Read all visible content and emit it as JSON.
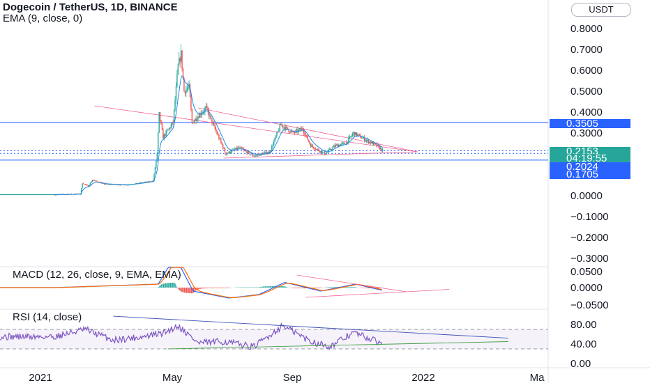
{
  "header": {
    "title": "Dogecoin / TetherUS, 1D, BINANCE",
    "indicator": "EMA (9, close, 0)",
    "currency_button": "USDT"
  },
  "macd_label": "MACD (12, 26, close, 9, EMA, EMA)",
  "rsi_label": "RSI (14, close)",
  "price_tags": {
    "last": "0.2153",
    "countdown": "04:19:55",
    "level_upper": "0.3505",
    "level_a": "0.2024",
    "level_b": "0.1705"
  },
  "colors": {
    "up": "#26a69a",
    "down": "#ef5350",
    "level_line": "#2962ff",
    "trend_line": "#f06292",
    "macd_line": "#2962ff",
    "signal_line": "#ff6d00",
    "rsi_line": "#7e57c2",
    "last_tag": "#26a69a"
  },
  "chart_data": {
    "type": "candlestick",
    "symbol": "DOGE/USDT",
    "interval": "1D",
    "exchange": "BINANCE",
    "price_axis": {
      "ticks": [
        "0.8000",
        "0.7000",
        "0.6000",
        "0.5000",
        "0.4000",
        "0.3000",
        "0.0000",
        "−0.1000",
        "−0.2000",
        "−0.3000"
      ],
      "range": [
        -0.32,
        0.86
      ]
    },
    "macd_axis": {
      "ticks": [
        "0.0500",
        "0.0000",
        "−0.0500"
      ]
    },
    "rsi_axis": {
      "ticks": [
        "80.00",
        "40.00",
        "0.00"
      ],
      "band": [
        30,
        70
      ]
    },
    "time_axis": [
      "2021",
      "May",
      "Sep",
      "2022",
      "Ma"
    ],
    "horizontal_levels": [
      0.3505,
      0.2153,
      0.2024,
      0.1705
    ],
    "price_path": [
      [
        "2021-01-01",
        0.005
      ],
      [
        "2021-01-27",
        0.008
      ],
      [
        "2021-01-29",
        0.06
      ],
      [
        "2021-02-04",
        0.045
      ],
      [
        "2021-02-08",
        0.075
      ],
      [
        "2021-02-20",
        0.055
      ],
      [
        "2021-03-15",
        0.052
      ],
      [
        "2021-04-10",
        0.07
      ],
      [
        "2021-04-14",
        0.2
      ],
      [
        "2021-04-16",
        0.39
      ],
      [
        "2021-04-20",
        0.28
      ],
      [
        "2021-04-30",
        0.35
      ],
      [
        "2021-05-05",
        0.62
      ],
      [
        "2021-05-08",
        0.68
      ],
      [
        "2021-05-11",
        0.5
      ],
      [
        "2021-05-16",
        0.52
      ],
      [
        "2021-05-19",
        0.35
      ],
      [
        "2021-05-25",
        0.38
      ],
      [
        "2021-06-02",
        0.42
      ],
      [
        "2021-06-10",
        0.33
      ],
      [
        "2021-06-22",
        0.2
      ],
      [
        "2021-07-05",
        0.23
      ],
      [
        "2021-07-20",
        0.19
      ],
      [
        "2021-08-05",
        0.21
      ],
      [
        "2021-08-16",
        0.34
      ],
      [
        "2021-08-28",
        0.3
      ],
      [
        "2021-09-07",
        0.32
      ],
      [
        "2021-09-15",
        0.24
      ],
      [
        "2021-09-29",
        0.2
      ],
      [
        "2021-10-10",
        0.24
      ],
      [
        "2021-10-20",
        0.25
      ],
      [
        "2021-10-28",
        0.3
      ],
      [
        "2021-11-08",
        0.27
      ],
      [
        "2021-11-20",
        0.24
      ],
      [
        "2021-11-26",
        0.2153
      ]
    ],
    "trendlines_price": [
      {
        "from": [
          "2021-02-10",
          0.43
        ],
        "to": [
          "2021-12-31",
          0.21
        ]
      },
      {
        "from": [
          "2021-05-25",
          0.42
        ],
        "to": [
          "2021-12-31",
          0.21
        ]
      },
      {
        "from": [
          "2021-06-20",
          0.18
        ],
        "to": [
          "2021-12-31",
          0.21
        ]
      }
    ],
    "macd": {
      "macd_path": [
        [
          "2021-01-01",
          0
        ],
        [
          "2021-04-15",
          0.01
        ],
        [
          "2021-05-02",
          0.09
        ],
        [
          "2021-05-20",
          -0.01
        ],
        [
          "2021-06-25",
          -0.03
        ],
        [
          "2021-07-25",
          -0.02
        ],
        [
          "2021-08-20",
          0.015
        ],
        [
          "2021-09-25",
          -0.01
        ],
        [
          "2021-10-30",
          0.01
        ],
        [
          "2021-11-26",
          -0.008
        ]
      ]
    },
    "rsi": {
      "rsi_path": [
        [
          "2021-01-01",
          55
        ],
        [
          "2021-02-01",
          70
        ],
        [
          "2021-03-01",
          48
        ],
        [
          "2021-04-01",
          55
        ],
        [
          "2021-04-20",
          62
        ],
        [
          "2021-05-05",
          78
        ],
        [
          "2021-05-25",
          42
        ],
        [
          "2021-06-20",
          45
        ],
        [
          "2021-07-20",
          34
        ],
        [
          "2021-08-18",
          78
        ],
        [
          "2021-09-15",
          45
        ],
        [
          "2021-10-05",
          35
        ],
        [
          "2021-10-28",
          64
        ],
        [
          "2021-11-26",
          40
        ]
      ],
      "trendlines": [
        {
          "from": [
            "2021-03-01",
            97
          ],
          "to": [
            "2022-04-01",
            52
          ]
        },
        {
          "from": [
            "2021-04-25",
            30
          ],
          "to": [
            "2022-04-01",
            45
          ]
        }
      ]
    }
  }
}
